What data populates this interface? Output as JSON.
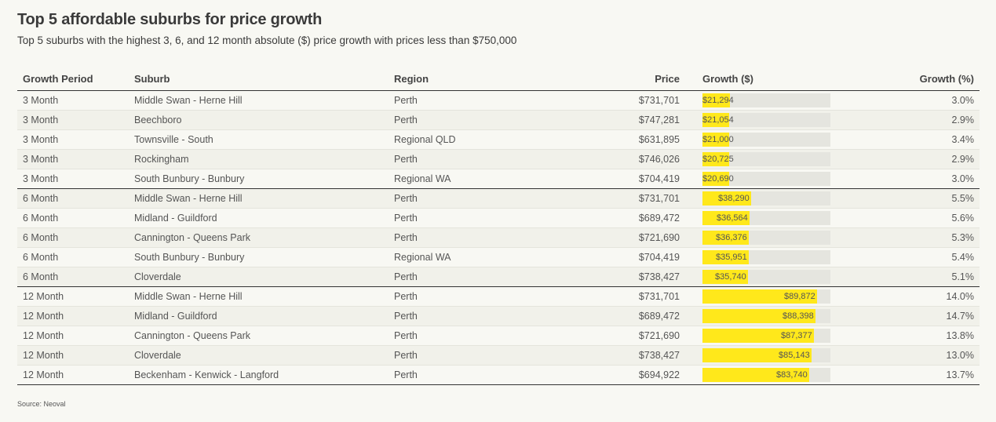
{
  "header": {
    "title": "Top 5 affordable suburbs for price growth",
    "subtitle": "Top 5 suburbs with the highest 3, 6, and 12 month absolute ($) price growth with prices less than $750,000"
  },
  "table": {
    "columns": [
      "Growth Period",
      "Suburb",
      "Region",
      "Price",
      "Growth ($)",
      "Growth (%)"
    ]
  },
  "colors": {
    "bar_fill": "#ffe81b",
    "bar_track": "#e5e5df"
  },
  "chart_data": {
    "type": "table",
    "bar_column": "Growth ($)",
    "bar_max": 100000,
    "rows": [
      {
        "period": "3 Month",
        "suburb": "Middle Swan - Herne Hill",
        "region": "Perth",
        "price": "$731,701",
        "growth_value": 21294,
        "growth_label": "$21,294",
        "pct": "3.0%"
      },
      {
        "period": "3 Month",
        "suburb": "Beechboro",
        "region": "Perth",
        "price": "$747,281",
        "growth_value": 21054,
        "growth_label": "$21,054",
        "pct": "2.9%"
      },
      {
        "period": "3 Month",
        "suburb": "Townsville - South",
        "region": "Regional QLD",
        "price": "$631,895",
        "growth_value": 21000,
        "growth_label": "$21,000",
        "pct": "3.4%"
      },
      {
        "period": "3 Month",
        "suburb": "Rockingham",
        "region": "Perth",
        "price": "$746,026",
        "growth_value": 20725,
        "growth_label": "$20,725",
        "pct": "2.9%"
      },
      {
        "period": "3 Month",
        "suburb": "South Bunbury - Bunbury",
        "region": "Regional WA",
        "price": "$704,419",
        "growth_value": 20690,
        "growth_label": "$20,690",
        "pct": "3.0%"
      },
      {
        "period": "6 Month",
        "suburb": "Middle Swan - Herne Hill",
        "region": "Perth",
        "price": "$731,701",
        "growth_value": 38290,
        "growth_label": "$38,290",
        "pct": "5.5%"
      },
      {
        "period": "6 Month",
        "suburb": "Midland - Guildford",
        "region": "Perth",
        "price": "$689,472",
        "growth_value": 36564,
        "growth_label": "$36,564",
        "pct": "5.6%"
      },
      {
        "period": "6 Month",
        "suburb": "Cannington - Queens Park",
        "region": "Perth",
        "price": "$721,690",
        "growth_value": 36376,
        "growth_label": "$36,376",
        "pct": "5.3%"
      },
      {
        "period": "6 Month",
        "suburb": "South Bunbury - Bunbury",
        "region": "Regional WA",
        "price": "$704,419",
        "growth_value": 35951,
        "growth_label": "$35,951",
        "pct": "5.4%"
      },
      {
        "period": "6 Month",
        "suburb": "Cloverdale",
        "region": "Perth",
        "price": "$738,427",
        "growth_value": 35740,
        "growth_label": "$35,740",
        "pct": "5.1%"
      },
      {
        "period": "12 Month",
        "suburb": "Middle Swan - Herne Hill",
        "region": "Perth",
        "price": "$731,701",
        "growth_value": 89872,
        "growth_label": "$89,872",
        "pct": "14.0%"
      },
      {
        "period": "12 Month",
        "suburb": "Midland - Guildford",
        "region": "Perth",
        "price": "$689,472",
        "growth_value": 88398,
        "growth_label": "$88,398",
        "pct": "14.7%"
      },
      {
        "period": "12 Month",
        "suburb": "Cannington - Queens Park",
        "region": "Perth",
        "price": "$721,690",
        "growth_value": 87377,
        "growth_label": "$87,377",
        "pct": "13.8%"
      },
      {
        "period": "12 Month",
        "suburb": "Cloverdale",
        "region": "Perth",
        "price": "$738,427",
        "growth_value": 85143,
        "growth_label": "$85,143",
        "pct": "13.0%"
      },
      {
        "period": "12 Month",
        "suburb": "Beckenham - Kenwick - Langford",
        "region": "Perth",
        "price": "$694,922",
        "growth_value": 83740,
        "growth_label": "$83,740",
        "pct": "13.7%"
      }
    ]
  },
  "footer": {
    "source": "Source: Neoval"
  }
}
